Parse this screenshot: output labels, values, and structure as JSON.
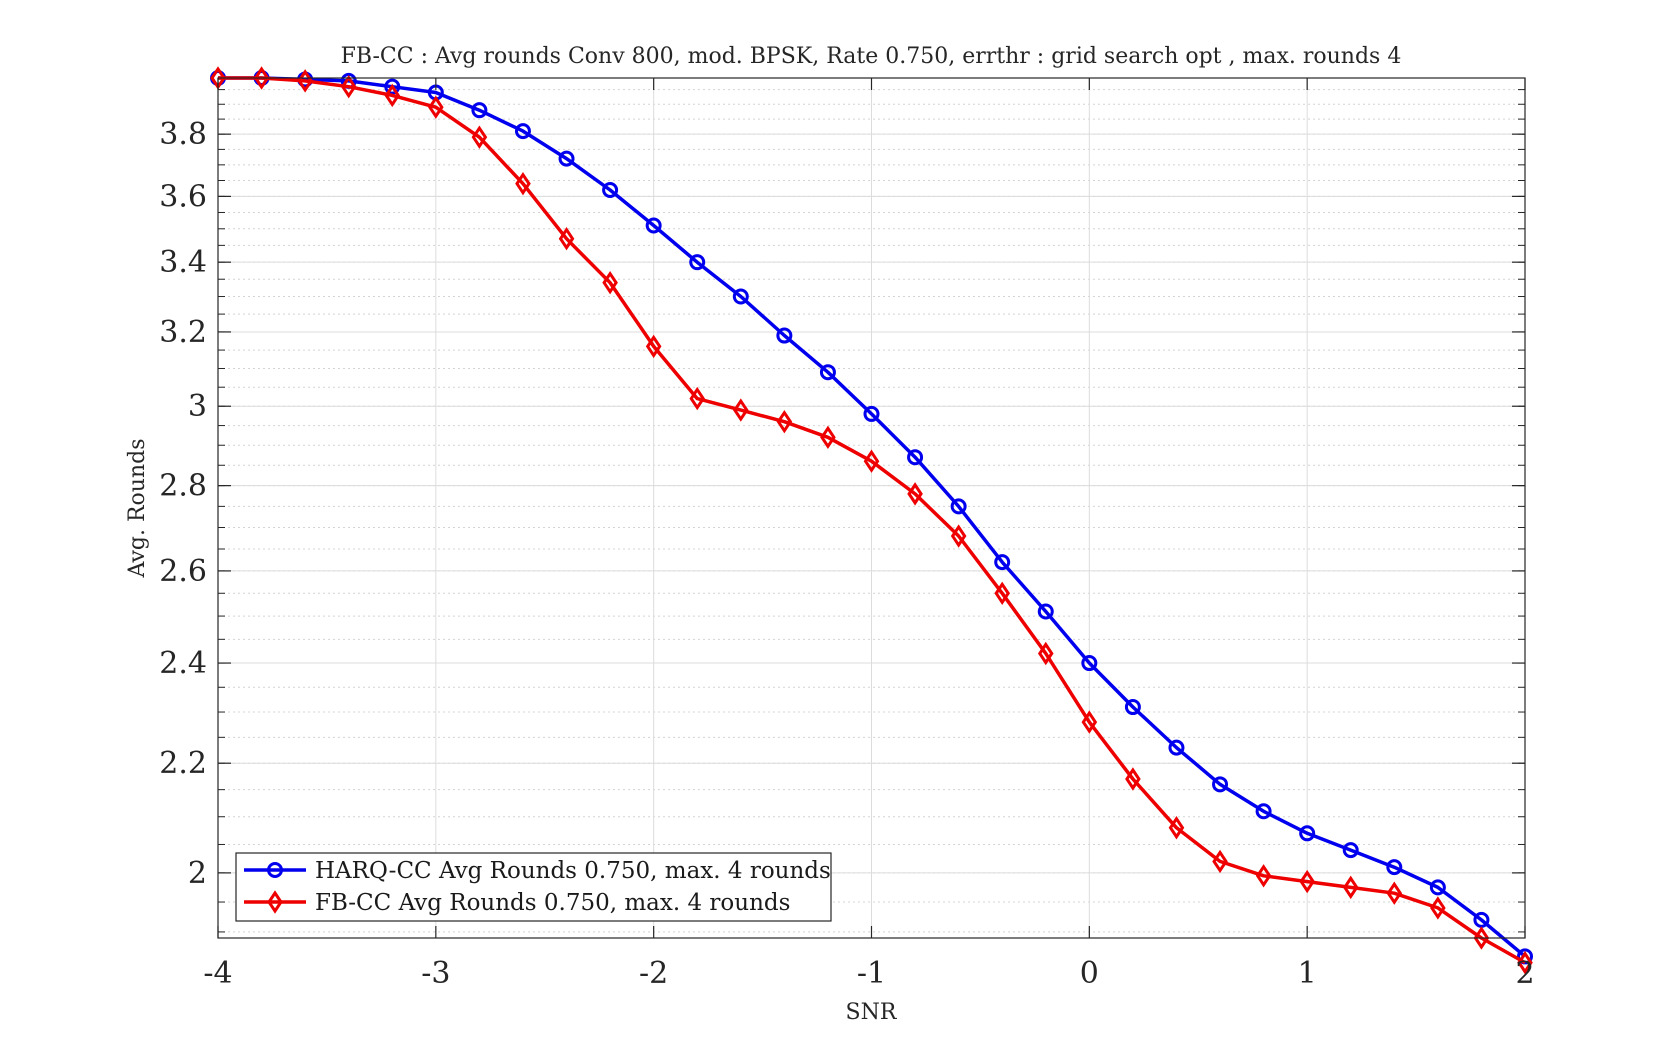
{
  "chart_data": {
    "type": "line",
    "title": "FB-CC : Avg rounds Conv 800, mod. BPSK, Rate 0.750, errthr : grid search opt , max. rounds 4",
    "xlabel": "SNR",
    "ylabel": "Avg. Rounds",
    "xlim": [
      -4,
      2
    ],
    "ylim": [
      1.89,
      3.99
    ],
    "yscale": "log",
    "grid": true,
    "minor_grid": true,
    "legend_position": "bottom-left",
    "x_ticks": [
      -4,
      -3,
      -2,
      -1,
      0,
      1,
      2
    ],
    "x_tick_labels": [
      "-4",
      "-3",
      "-2",
      "-1",
      "0",
      "1",
      "2"
    ],
    "y_ticks": [
      2,
      2.2,
      2.4,
      2.6,
      2.8,
      3,
      3.2,
      3.4,
      3.6,
      3.8
    ],
    "y_tick_labels": [
      "2",
      "2.2",
      "2.4",
      "2.6",
      "2.8",
      "3",
      "3.2",
      "3.4",
      "3.6",
      "3.8"
    ],
    "x": [
      -4,
      -3.8,
      -3.6,
      -3.4,
      -3.2,
      -3,
      -2.8,
      -2.6,
      -2.4,
      -2.2,
      -2,
      -1.8,
      -1.6,
      -1.4,
      -1.2,
      -1,
      -0.8,
      -0.6,
      -0.4,
      -0.2,
      0,
      0.2,
      0.4,
      0.6,
      0.8,
      1,
      1.2,
      1.4,
      1.6,
      1.8,
      2
    ],
    "series": [
      {
        "name": "HARQ-CC Avg Rounds 0.750, max. 4 rounds",
        "color": "#0000ee",
        "marker": "circle",
        "values": [
          3.99,
          3.99,
          3.985,
          3.98,
          3.96,
          3.94,
          3.88,
          3.81,
          3.72,
          3.62,
          3.51,
          3.4,
          3.3,
          3.19,
          3.09,
          2.98,
          2.87,
          2.75,
          2.62,
          2.51,
          2.4,
          2.31,
          2.23,
          2.16,
          2.11,
          2.07,
          2.04,
          2.01,
          1.975,
          1.92,
          1.86
        ]
      },
      {
        "name": "FB-CC Avg Rounds 0.750, max. 4 rounds",
        "color": "#ee0000",
        "marker": "diamond",
        "values": [
          3.99,
          3.99,
          3.98,
          3.96,
          3.93,
          3.89,
          3.79,
          3.64,
          3.47,
          3.34,
          3.16,
          3.02,
          2.99,
          2.96,
          2.92,
          2.86,
          2.78,
          2.68,
          2.55,
          2.42,
          2.28,
          2.17,
          2.08,
          2.02,
          1.995,
          1.985,
          1.975,
          1.965,
          1.94,
          1.89,
          1.85
        ]
      }
    ]
  }
}
